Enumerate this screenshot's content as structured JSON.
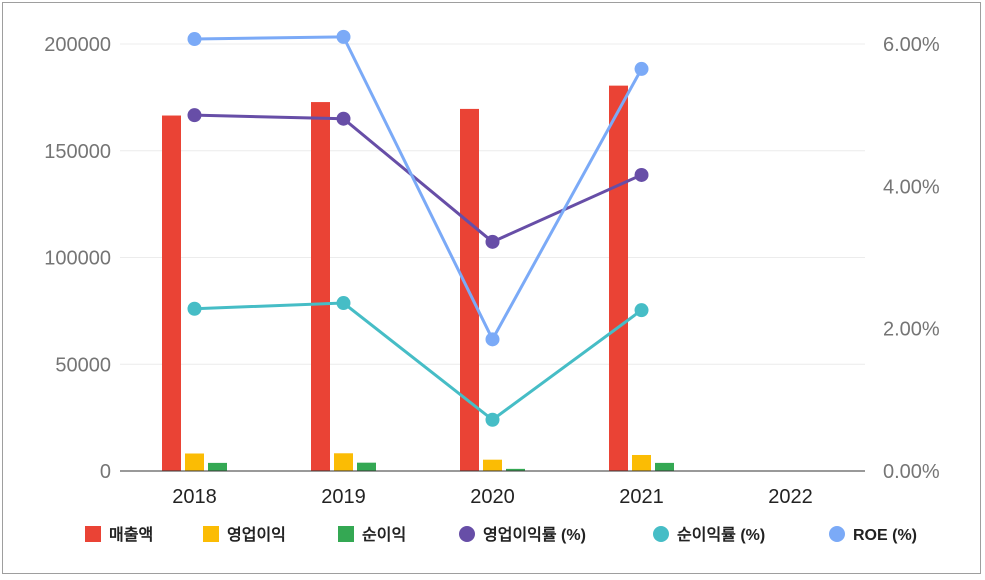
{
  "chart_data": {
    "type": "bar",
    "categories": [
      "2018",
      "2019",
      "2020",
      "2021",
      "2022"
    ],
    "y_left": {
      "ylim": [
        0,
        200000
      ],
      "ticks": [
        "0",
        "50000",
        "100000",
        "150000",
        "200000"
      ]
    },
    "y_right": {
      "ylim": [
        0,
        6.0
      ],
      "ticks": [
        "0.00%",
        "2.00%",
        "4.00%",
        "6.00%"
      ]
    },
    "bar_series": [
      {
        "name": "매출액",
        "color": "#EA4335",
        "values": [
          166500,
          172800,
          169600,
          180500,
          null
        ]
      },
      {
        "name": "영업이익",
        "color": "#FBBC04",
        "values": [
          8200,
          8300,
          5300,
          7500,
          null
        ]
      },
      {
        "name": "순이익",
        "color": "#34A853",
        "values": [
          3800,
          3900,
          1000,
          3800,
          null
        ]
      }
    ],
    "line_series": [
      {
        "name": "영업이익률 (%)",
        "color": "#674EA7",
        "values": [
          5.0,
          4.95,
          3.22,
          4.16,
          null
        ]
      },
      {
        "name": "순이익률 (%)",
        "color": "#46BDC6",
        "values": [
          2.28,
          2.36,
          0.72,
          2.26,
          null
        ]
      },
      {
        "name": "ROE (%)",
        "color": "#7BAAF7",
        "values": [
          6.07,
          6.1,
          1.85,
          5.65,
          null
        ]
      }
    ],
    "legend_position": "bottom",
    "grid": true
  }
}
